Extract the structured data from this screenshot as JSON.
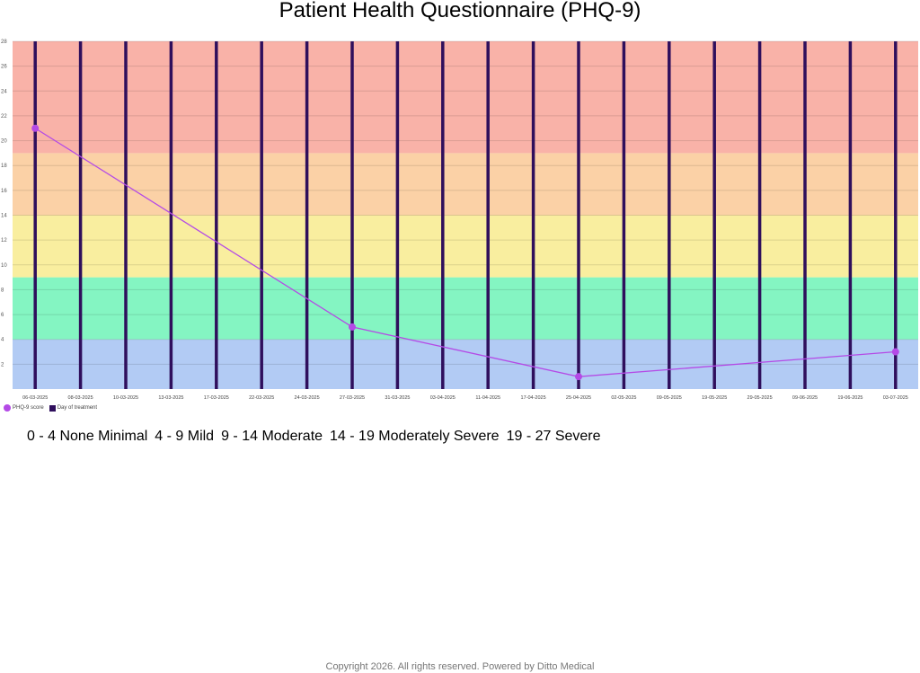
{
  "title": "Patient Health Questionnaire (PHQ-9)",
  "chart_data": {
    "type": "line",
    "title": "Patient Health Questionnaire (PHQ-9)",
    "categories": [
      "06-03-2025",
      "08-03-2025",
      "10-03-2025",
      "13-03-2025",
      "17-03-2025",
      "22-03-2025",
      "24-03-2025",
      "27-03-2025",
      "31-03-2025",
      "03-04-2025",
      "11-04-2025",
      "17-04-2025",
      "25-04-2025",
      "02-05-2025",
      "09-05-2025",
      "19-05-2025",
      "29-05-2025",
      "09-06-2025",
      "19-06-2025",
      "03-07-2025"
    ],
    "ylim": [
      0,
      28
    ],
    "yticks": [
      2,
      4,
      6,
      8,
      10,
      12,
      14,
      16,
      18,
      20,
      22,
      24,
      26,
      28
    ],
    "series": [
      {
        "name": "PHQ-9 score",
        "color": "#b44ae6",
        "points": [
          {
            "category": "06-03-2025",
            "value": 21
          },
          {
            "category": "27-03-2025",
            "value": 5
          },
          {
            "category": "25-04-2025",
            "value": 1
          },
          {
            "category": "03-07-2025",
            "value": 3
          }
        ]
      },
      {
        "name": "Day of treatment",
        "color": "#2f0f5c",
        "type": "bar",
        "every_category": true
      }
    ],
    "bands": [
      {
        "from": 0,
        "to": 4,
        "color": "#b2cbf4"
      },
      {
        "from": 4,
        "to": 9,
        "color": "#84f5c2"
      },
      {
        "from": 9,
        "to": 14,
        "color": "#f9ee9f"
      },
      {
        "from": 14,
        "to": 19,
        "color": "#fbd1a6"
      },
      {
        "from": 19,
        "to": 28,
        "color": "#f9b2a8"
      }
    ],
    "grid": true,
    "legend": "bottom-left"
  },
  "legend": {
    "score_label": "PHQ-9 score",
    "day_label": "Day of treatment",
    "score_color": "#b44ae6",
    "day_color": "#2f0f5c"
  },
  "ranges": [
    "0 - 4 None Minimal",
    "4 - 9 Mild",
    "9 - 14 Moderate",
    "14 - 19 Moderately Severe",
    "19 - 27 Severe"
  ],
  "footer": "Copyright  2026. All rights reserved. Powered by Ditto Medical"
}
